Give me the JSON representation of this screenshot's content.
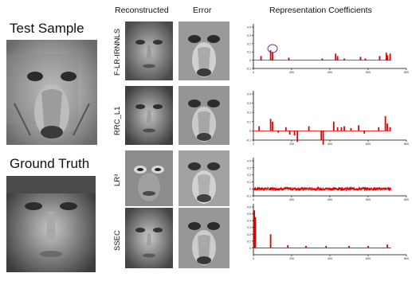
{
  "left": {
    "test_label": "Test Sample",
    "truth_label": "Ground Truth"
  },
  "headers": {
    "reconstructed": "Reconstructed",
    "error": "Error",
    "coefficients": "Representation Coefficients"
  },
  "methods": [
    "F-LR-IRNNLS",
    "RRC_L1",
    "LR³",
    "SSEC"
  ],
  "chart_data": [
    {
      "type": "bar",
      "method": "F-LR-IRNNLS",
      "xlim": [
        0,
        800
      ],
      "ylim": [
        -0.1,
        0.4
      ],
      "y_ticks": [
        "0.4",
        "0.3",
        "0.2",
        "0.1",
        "0",
        "-0.1"
      ],
      "x_ticks": [
        "0",
        "200",
        "400",
        "600",
        "800"
      ],
      "indices": [
        40,
        90,
        100,
        185,
        360,
        430,
        440,
        475,
        560,
        585,
        660,
        695,
        700,
        715
      ],
      "values": [
        0.05,
        0.12,
        0.1,
        0.03,
        0.02,
        0.08,
        0.05,
        0.02,
        0.04,
        0.02,
        0.05,
        0.09,
        0.06,
        0.08
      ],
      "annotation": "circled coefficient near index 100"
    },
    {
      "type": "bar",
      "method": "RRC_L1",
      "xlim": [
        0,
        800
      ],
      "ylim": [
        -0.1,
        0.4
      ],
      "y_ticks": [
        "0.4",
        "0.3",
        "0.2",
        "0.1",
        "0",
        "-0.1"
      ],
      "x_ticks": [
        "0",
        "200",
        "400",
        "600",
        "800"
      ],
      "indices": [
        30,
        90,
        100,
        130,
        170,
        190,
        215,
        230,
        290,
        355,
        365,
        420,
        440,
        460,
        475,
        510,
        550,
        580,
        655,
        690,
        700,
        715
      ],
      "values": [
        0.05,
        0.13,
        0.1,
        -0.02,
        0.04,
        -0.04,
        -0.05,
        -0.12,
        0.05,
        -0.1,
        -0.15,
        0.1,
        0.04,
        0.04,
        0.05,
        0.03,
        0.06,
        -0.03,
        0.04,
        0.16,
        0.08,
        0.04
      ],
      "annotation": ""
    },
    {
      "type": "line",
      "method": "LR³",
      "xlim": [
        0,
        800
      ],
      "ylim": [
        -0.1,
        0.4
      ],
      "y_ticks": [
        "0.4",
        "0.3",
        "0.2",
        "0.1",
        "0",
        "-0.1"
      ],
      "x_ticks": [
        "0",
        "200",
        "400",
        "600",
        "800"
      ],
      "noise_amplitude": 0.025,
      "n_points": 720,
      "annotation": ""
    },
    {
      "type": "bar",
      "method": "SSEC",
      "xlim": [
        0,
        800
      ],
      "ylim": [
        -0.1,
        0.6
      ],
      "y_ticks": [
        "0.6",
        "0.5",
        "0.4",
        "0.3",
        "0.2",
        "0.1",
        "0"
      ],
      "x_ticks": [
        "0",
        "200",
        "400",
        "600",
        "800"
      ],
      "indices": [
        5,
        10,
        90,
        180,
        275,
        380,
        500,
        600,
        700
      ],
      "values": [
        0.55,
        0.45,
        0.2,
        0.04,
        0.03,
        0.03,
        0.03,
        0.03,
        0.05
      ],
      "annotation": ""
    }
  ]
}
